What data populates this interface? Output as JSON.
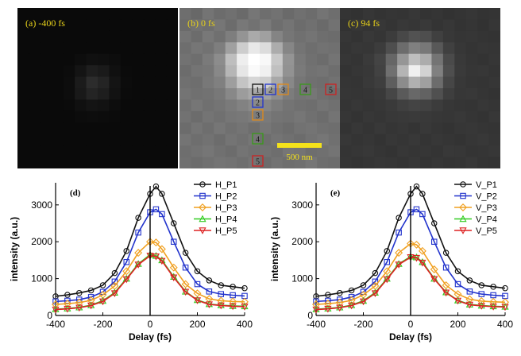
{
  "panels": [
    {
      "label": "(a) -400 fs",
      "map": [
        [
          10,
          10,
          10,
          10,
          10,
          10,
          10,
          10,
          10,
          10,
          10,
          10,
          10,
          10
        ],
        [
          10,
          10,
          10,
          10,
          10,
          10,
          10,
          10,
          10,
          10,
          10,
          10,
          10,
          10
        ],
        [
          10,
          10,
          10,
          10,
          10,
          10,
          10,
          10,
          10,
          10,
          10,
          10,
          10,
          10
        ],
        [
          10,
          10,
          10,
          10,
          10,
          10,
          10,
          10,
          10,
          10,
          10,
          10,
          10,
          10
        ],
        [
          10,
          10,
          10,
          10,
          10,
          13,
          16,
          15,
          13,
          10,
          10,
          10,
          10,
          10
        ],
        [
          10,
          10,
          10,
          10,
          12,
          20,
          30,
          26,
          16,
          11,
          10,
          10,
          10,
          10
        ],
        [
          10,
          10,
          10,
          10,
          13,
          27,
          44,
          36,
          20,
          12,
          10,
          10,
          10,
          10
        ],
        [
          10,
          10,
          10,
          10,
          13,
          25,
          36,
          30,
          18,
          11,
          10,
          10,
          10,
          10
        ],
        [
          10,
          10,
          10,
          10,
          11,
          16,
          20,
          18,
          13,
          10,
          10,
          10,
          10,
          10
        ],
        [
          10,
          10,
          10,
          10,
          10,
          12,
          13,
          12,
          11,
          10,
          10,
          10,
          10,
          10
        ],
        [
          10,
          10,
          10,
          10,
          10,
          10,
          10,
          10,
          10,
          10,
          10,
          10,
          10,
          10
        ],
        [
          10,
          10,
          10,
          10,
          10,
          10,
          10,
          10,
          10,
          10,
          10,
          10,
          10,
          10
        ],
        [
          10,
          10,
          10,
          10,
          10,
          10,
          10,
          10,
          10,
          10,
          10,
          10,
          10,
          10
        ],
        [
          10,
          10,
          10,
          10,
          10,
          10,
          10,
          10,
          10,
          10,
          10,
          10,
          10,
          10
        ]
      ]
    },
    {
      "label": "(b) 0 fs",
      "map": [
        [
          110,
          104,
          116,
          108,
          112,
          106,
          118,
          110,
          114,
          106,
          112,
          108,
          116,
          110
        ],
        [
          106,
          114,
          110,
          118,
          108,
          120,
          114,
          122,
          110,
          116,
          108,
          112,
          106,
          114
        ],
        [
          116,
          108,
          120,
          112,
          126,
          148,
          170,
          160,
          132,
          118,
          112,
          116,
          110,
          108
        ],
        [
          110,
          118,
          114,
          126,
          160,
          205,
          232,
          220,
          172,
          134,
          116,
          110,
          114,
          112
        ],
        [
          114,
          110,
          122,
          140,
          190,
          238,
          255,
          248,
          200,
          148,
          120,
          112,
          108,
          116
        ],
        [
          108,
          116,
          118,
          136,
          182,
          230,
          250,
          240,
          192,
          146,
          122,
          114,
          116,
          110
        ],
        [
          112,
          110,
          120,
          128,
          158,
          196,
          214,
          206,
          168,
          136,
          118,
          112,
          110,
          114
        ],
        [
          116,
          112,
          114,
          120,
          136,
          156,
          168,
          160,
          142,
          124,
          116,
          118,
          112,
          108
        ],
        [
          110,
          118,
          112,
          116,
          122,
          130,
          138,
          134,
          124,
          116,
          112,
          110,
          116,
          112
        ],
        [
          114,
          108,
          116,
          112,
          118,
          120,
          124,
          122,
          116,
          114,
          118,
          112,
          108,
          116
        ],
        [
          108,
          116,
          110,
          118,
          112,
          116,
          110,
          118,
          112,
          108,
          114,
          116,
          112,
          110
        ],
        [
          116,
          110,
          114,
          108,
          116,
          112,
          118,
          110,
          116,
          112,
          108,
          114,
          118,
          112
        ],
        [
          110,
          114,
          118,
          112,
          108,
          116,
          112,
          114,
          110,
          118,
          116,
          110,
          112,
          116
        ],
        [
          112,
          108,
          112,
          116,
          114,
          110,
          116,
          108,
          114,
          110,
          112,
          118,
          110,
          108
        ]
      ]
    },
    {
      "label": "(c) 94 fs",
      "map": [
        [
          52,
          50,
          54,
          51,
          53,
          52,
          55,
          51,
          53,
          50,
          52,
          54,
          51,
          52
        ],
        [
          50,
          54,
          51,
          55,
          52,
          56,
          54,
          57,
          52,
          55,
          51,
          53,
          50,
          54
        ],
        [
          54,
          51,
          56,
          53,
          60,
          72,
          82,
          78,
          64,
          56,
          53,
          54,
          52,
          51
        ],
        [
          52,
          55,
          54,
          60,
          78,
          108,
          128,
          120,
          88,
          64,
          55,
          52,
          54,
          53
        ],
        [
          54,
          52,
          58,
          68,
          102,
          150,
          190,
          172,
          116,
          74,
          57,
          53,
          51,
          54
        ],
        [
          51,
          54,
          56,
          66,
          112,
          180,
          240,
          210,
          128,
          78,
          58,
          54,
          55,
          52
        ],
        [
          53,
          52,
          57,
          62,
          94,
          140,
          176,
          160,
          108,
          70,
          56,
          53,
          52,
          54
        ],
        [
          54,
          53,
          54,
          57,
          70,
          90,
          104,
          98,
          80,
          62,
          55,
          56,
          53,
          51
        ],
        [
          52,
          55,
          53,
          55,
          58,
          64,
          68,
          66,
          60,
          55,
          53,
          52,
          55,
          53
        ],
        [
          54,
          51,
          55,
          53,
          56,
          57,
          58,
          57,
          55,
          54,
          56,
          53,
          51,
          55
        ],
        [
          51,
          55,
          52,
          56,
          53,
          55,
          52,
          56,
          53,
          51,
          54,
          55,
          53,
          52
        ],
        [
          55,
          52,
          54,
          51,
          55,
          53,
          56,
          52,
          55,
          53,
          51,
          54,
          56,
          53
        ],
        [
          52,
          54,
          56,
          53,
          51,
          55,
          53,
          54,
          52,
          56,
          55,
          52,
          53,
          55
        ],
        [
          53,
          51,
          53,
          55,
          54,
          52,
          55,
          51,
          54,
          52,
          53,
          56,
          52,
          51
        ]
      ]
    }
  ],
  "markers": [
    {
      "text": "1",
      "color": "#111111"
    },
    {
      "text": "2",
      "color": "#2233cc"
    },
    {
      "text": "3",
      "color": "#e08a1a"
    },
    {
      "text": "4",
      "color": "#3a9a1a"
    },
    {
      "text": "5",
      "color": "#cc2222"
    }
  ],
  "scalebar": {
    "label": "500 nm",
    "color": "#f4e21a"
  },
  "chart_data": [
    {
      "type": "line",
      "title": "(d)",
      "xlabel": "Delay (fs)",
      "ylabel": "intensity (a.u.)",
      "xlim": [
        -400,
        400
      ],
      "ylim": [
        0,
        3600
      ],
      "xticks": [
        -400,
        -200,
        0,
        200,
        400
      ],
      "yticks": [
        0,
        1000,
        2000,
        3000
      ],
      "vline": 0,
      "x": [
        -400,
        -350,
        -300,
        -250,
        -200,
        -150,
        -100,
        -50,
        0,
        25,
        50,
        100,
        150,
        200,
        250,
        300,
        350,
        400
      ],
      "series": [
        {
          "name": "H_P1",
          "color": "#111111",
          "marker": "circle",
          "values": [
            520,
            560,
            610,
            680,
            820,
            1150,
            1750,
            2650,
            3300,
            3500,
            3300,
            2500,
            1700,
            1200,
            950,
            820,
            780,
            740
          ]
        },
        {
          "name": "H_P2",
          "color": "#2233cc",
          "marker": "square",
          "values": [
            380,
            400,
            430,
            500,
            640,
            920,
            1450,
            2250,
            2800,
            2880,
            2750,
            2000,
            1300,
            850,
            650,
            580,
            550,
            530
          ]
        },
        {
          "name": "H_P3",
          "color": "#f0a020",
          "marker": "diamond",
          "values": [
            300,
            320,
            350,
            410,
            560,
            800,
            1200,
            1700,
            2000,
            1980,
            1800,
            1300,
            850,
            600,
            450,
            400,
            380,
            370
          ]
        },
        {
          "name": "H_P4",
          "color": "#33cc22",
          "marker": "triangle-up",
          "values": [
            170,
            190,
            220,
            280,
            400,
            620,
            1000,
            1400,
            1650,
            1620,
            1500,
            1050,
            650,
            420,
            310,
            280,
            260,
            250
          ]
        },
        {
          "name": "H_P5",
          "color": "#dd2222",
          "marker": "triangle-down",
          "values": [
            160,
            180,
            210,
            270,
            380,
            600,
            980,
            1380,
            1620,
            1600,
            1480,
            1030,
            640,
            410,
            300,
            270,
            250,
            240
          ]
        }
      ]
    },
    {
      "type": "line",
      "title": "(e)",
      "xlabel": "Delay (fs)",
      "ylabel": "intensity (a.u.)",
      "xlim": [
        -400,
        400
      ],
      "ylim": [
        0,
        3600
      ],
      "xticks": [
        -400,
        -200,
        0,
        200,
        400
      ],
      "yticks": [
        0,
        1000,
        2000,
        3000
      ],
      "vline": 0,
      "x": [
        -400,
        -350,
        -300,
        -250,
        -200,
        -150,
        -100,
        -50,
        0,
        25,
        50,
        100,
        150,
        200,
        250,
        300,
        350,
        400
      ],
      "series": [
        {
          "name": "V_P1",
          "color": "#111111",
          "marker": "circle",
          "values": [
            520,
            560,
            610,
            680,
            820,
            1150,
            1750,
            2650,
            3300,
            3500,
            3300,
            2500,
            1700,
            1200,
            950,
            820,
            780,
            740
          ]
        },
        {
          "name": "V_P2",
          "color": "#2233cc",
          "marker": "square",
          "values": [
            380,
            400,
            430,
            500,
            640,
            920,
            1450,
            2250,
            2800,
            2880,
            2750,
            2000,
            1300,
            850,
            650,
            580,
            550,
            530
          ]
        },
        {
          "name": "V_P3",
          "color": "#f0a020",
          "marker": "diamond",
          "values": [
            300,
            320,
            350,
            410,
            560,
            800,
            1200,
            1700,
            1950,
            1920,
            1750,
            1250,
            820,
            580,
            440,
            390,
            370,
            360
          ]
        },
        {
          "name": "V_P4",
          "color": "#33cc22",
          "marker": "triangle-up",
          "values": [
            170,
            190,
            220,
            280,
            400,
            620,
            1000,
            1400,
            1600,
            1580,
            1450,
            1000,
            630,
            410,
            300,
            270,
            250,
            240
          ]
        },
        {
          "name": "V_P5",
          "color": "#dd2222",
          "marker": "triangle-down",
          "values": [
            160,
            180,
            210,
            270,
            380,
            600,
            980,
            1380,
            1580,
            1560,
            1430,
            990,
            620,
            400,
            290,
            260,
            240,
            230
          ]
        }
      ]
    }
  ]
}
